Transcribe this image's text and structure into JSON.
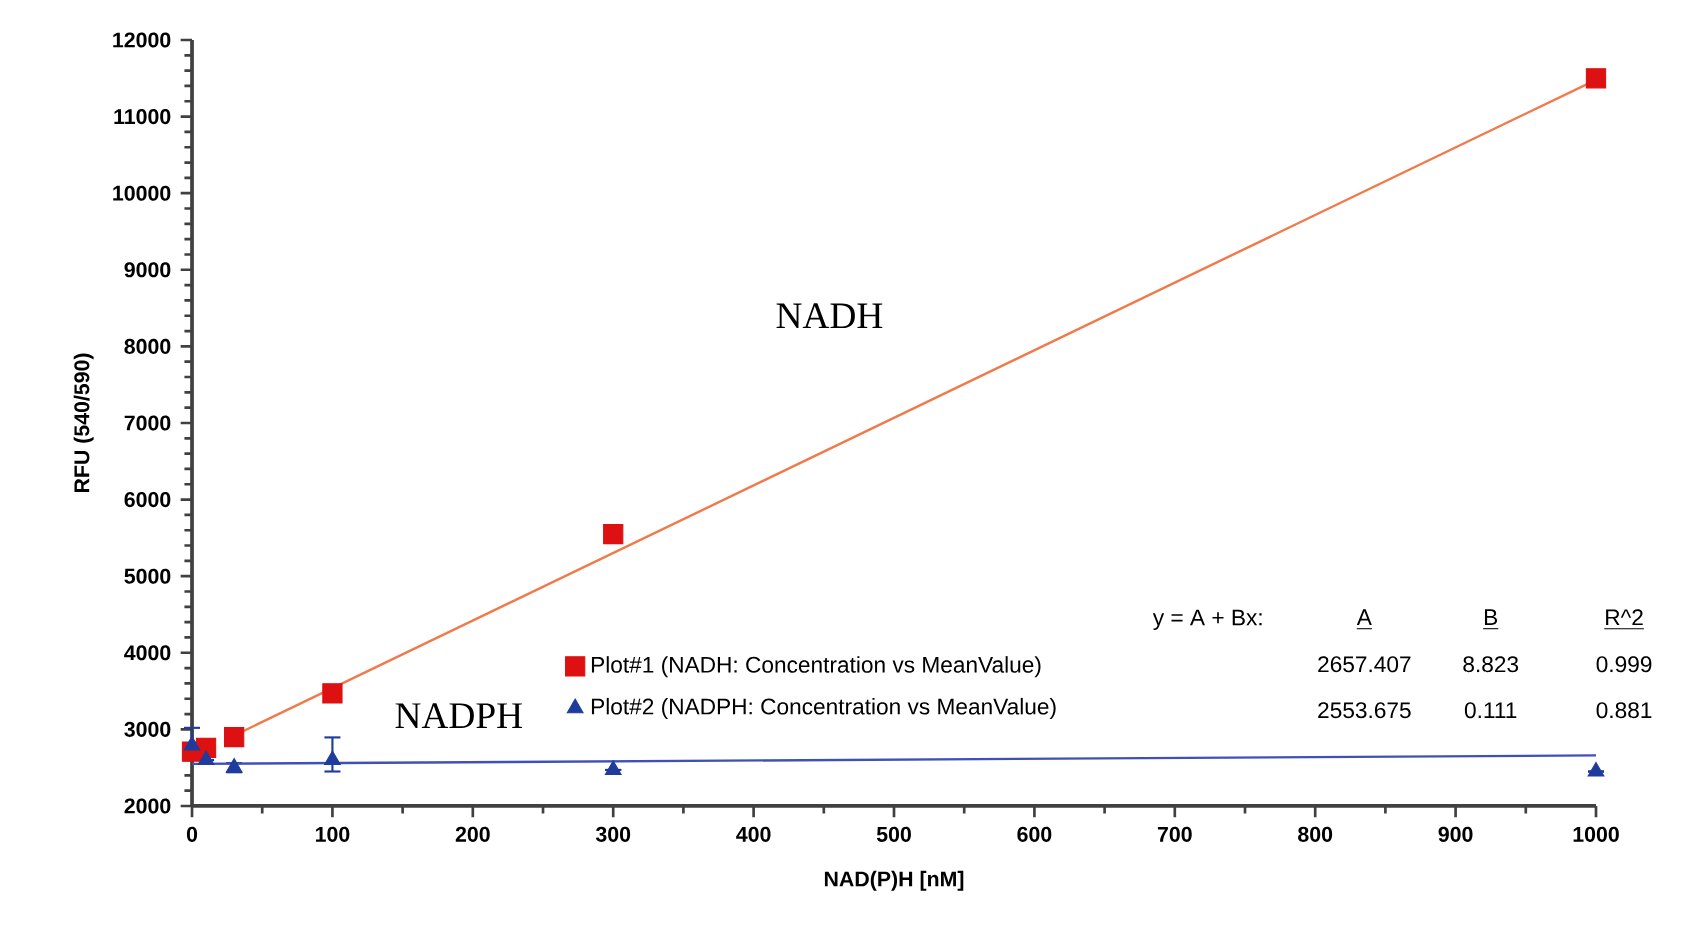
{
  "chart_data": {
    "type": "scatter",
    "xlabel": "NAD(P)H [nM]",
    "ylabel": "RFU (540/590)",
    "xlim": [
      0,
      1000
    ],
    "xticks": [
      0,
      100,
      200,
      300,
      400,
      500,
      600,
      700,
      800,
      900,
      1000
    ],
    "ylim": [
      2000,
      12000
    ],
    "yticks": [
      2000,
      3000,
      4000,
      5000,
      6000,
      7000,
      8000,
      9000,
      10000,
      11000,
      12000
    ],
    "grid": false,
    "legend": "bottom",
    "series": [
      {
        "name": "Plot#1 (NADH: Concentration vs MeanValue)",
        "marker": "square",
        "color": "#dd1111",
        "x": [
          0,
          10,
          30,
          100,
          300,
          1000
        ],
        "values": [
          2710,
          2760,
          2900,
          3470,
          5550,
          11500
        ]
      },
      {
        "name": "Plot#2 (NADPH: Concentration vs MeanValue)",
        "marker": "triangle",
        "color": "#1f3c9c",
        "x": [
          0,
          10,
          30,
          100,
          300,
          1000
        ],
        "values": [
          2790,
          2600,
          2500,
          2600,
          2470,
          2450
        ],
        "errors": [
          [
            2600,
            3020
          ],
          null,
          [
            2440,
            2560
          ],
          [
            2450,
            2895
          ],
          null,
          null
        ]
      },
      {
        "type": "line",
        "color": "#f07a4a",
        "x": [
          30,
          1000
        ],
        "values": [
          2920,
          11480
        ]
      },
      {
        "type": "line",
        "color": "#4050b8",
        "x": [
          0,
          1000
        ],
        "values": [
          2550,
          2660
        ]
      }
    ],
    "annotations": [
      "NADH",
      "NADPH",
      "y = A + Bx:",
      "A",
      "B",
      "R^2",
      "2657.407",
      "8.823",
      "0.999",
      "2553.675",
      "0.111",
      "0.881"
    ]
  }
}
